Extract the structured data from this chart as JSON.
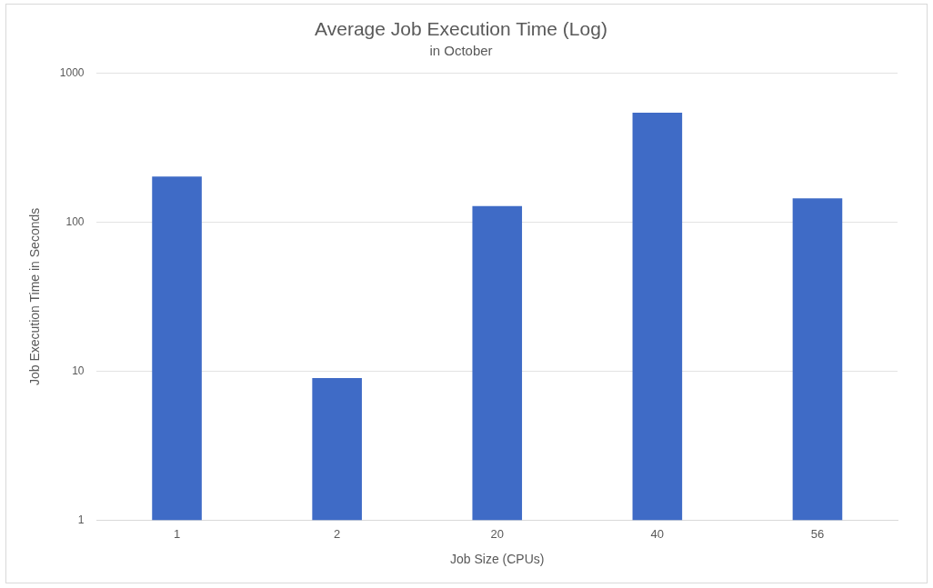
{
  "chart_data": {
    "type": "bar",
    "title": "Average Job Execution Time (Log)",
    "subtitle": "in October",
    "xlabel": "Job Size (CPUs)",
    "ylabel": "Job Execution Time in Seconds",
    "categories": [
      "1",
      "2",
      "20",
      "40",
      "56"
    ],
    "values": [
      202,
      9,
      128,
      540,
      144
    ],
    "color": "#3f6bc6",
    "log": true,
    "ylim": [
      1,
      1000
    ],
    "yticks": [
      1,
      10,
      100,
      1000
    ],
    "grid": "y",
    "legend": false
  }
}
